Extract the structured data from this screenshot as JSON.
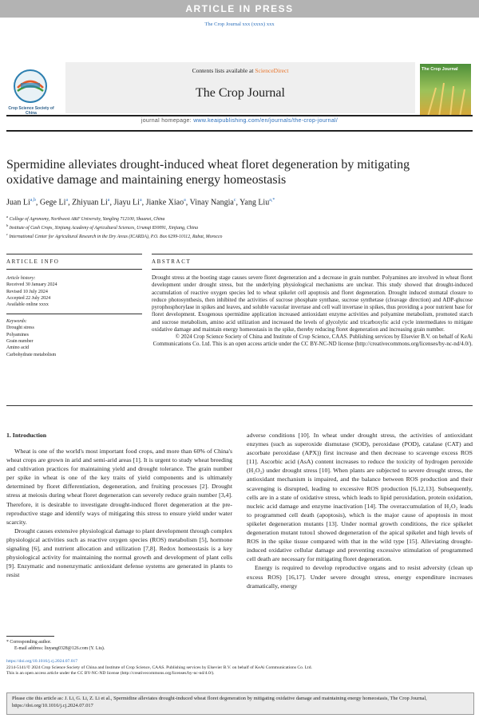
{
  "banner": "ARTICLE IN PRESS",
  "journal_reference": "The Crop Journal xxx (xxxx) xxx",
  "header": {
    "society_logo_text": "Crop Science Society of China",
    "contents_prefix": "Contents lists available at",
    "contents_link": "ScienceDirect",
    "journal_title": "The Crop Journal",
    "cover_title": "The Crop Journal",
    "homepage_label": "journal homepage:",
    "homepage_url": "www.keaipublishing.com/en/journals/the-crop-journal/"
  },
  "article": {
    "title": "Spermidine alleviates drought-induced wheat floret degeneration by mitigating oxidative damage and maintaining energy homeostasis",
    "authors": [
      {
        "name": "Juan Li",
        "sup": "a,b"
      },
      {
        "name": "Gege Li",
        "sup": "a"
      },
      {
        "name": "Zhiyuan Li",
        "sup": "a"
      },
      {
        "name": "Jiayu Li",
        "sup": "a"
      },
      {
        "name": "Jianke Xiao",
        "sup": "a"
      },
      {
        "name": "Vinay Nangia",
        "sup": "c"
      },
      {
        "name": "Yang Liu",
        "sup": "a,*"
      }
    ],
    "affiliations": [
      {
        "sup": "a",
        "text": "College of Agronomy, Northwest A&F University, Yangling 712100, Shaanxi, China"
      },
      {
        "sup": "b",
        "text": "Institute of Cash Crops, Xinjiang Academy of Agricultural Sciences, Urumqi 830091, Xinjiang, China"
      },
      {
        "sup": "c",
        "text": "International Center for Agricultural Research in the Dry Areas (ICARDA), P.O. Box 6299-10112, Rabat, Morocco"
      }
    ],
    "article_info_heading": "ARTICLE INFO",
    "history_label": "Article history:",
    "history": [
      "Received 30 January 2024",
      "Revised 10 July 2024",
      "Accepted 22 July 2024",
      "Available online xxxx"
    ],
    "keywords_label": "Keywords:",
    "keywords": [
      "Drought stress",
      "Polyamines",
      "Grain number",
      "Amino acid",
      "Carbohydrate metabolism"
    ],
    "abstract_heading": "ABSTRACT",
    "abstract": "Drought stress at the booting stage causes severe floret degeneration and a decrease in grain number. Polyamines are involved in wheat floret development under drought stress, but the underlying physiological mechanisms are unclear. This study showed that drought-induced accumulation of reactive oxygen species led to wheat spikelet cell apoptosis and floret degeneration. Drought induced stomatal closure to reduce photosynthesis, then inhibited the activities of sucrose phosphate synthase, sucrose synthetase (cleavage direction) and ADP-glucose pyrophosphorylase in spikes and leaves, and soluble vacuolar invertase and cell wall invertase in spikes, thus providing a poor nutrient base for floret development. Exogenous spermidine application increased antioxidant enzyme activities and polyamine metabolism, promoted starch and sucrose metabolism, amino acid utilization and increased the levels of glycolytic and tricarboxylic acid cycle intermediates to mitigate oxidative damage and maintain energy homeostasis in the spike, thereby reducing floret degeneration and increasing grain number.",
    "abstract_copyright": "© 2024 Crop Science Society of China and Institute of Crop Science, CAAS. Publishing services by Elsevier B.V. on behalf of KeAi Communications Co. Ltd. This is an open access article under the CC BY-NC-ND license (http://creativecommons.org/licenses/by-nc-nd/4.0/).",
    "introduction": {
      "heading": "1. Introduction",
      "left_column": [
        "Wheat is one of the world's most important food crops, and more than 60% of China's wheat crops are grown in arid and semi-arid areas [1]. It is urgent to study wheat breeding and cultivation practices for maintaining yield and drought tolerance. The grain number per spike in wheat is one of the key traits of yield components and is ultimately determined by floret differentiation, degeneration, and fruiting processes [2]. Drought stress at meiosis during wheat floret degeneration can severely reduce grain number [3,4]. Therefore, it is desirable to investigate drought-induced floret degeneration at the pre-reproductive stage and identify ways of mitigating this stress to ensure yield under water scarcity.",
        "Drought causes extensive physiological damage to plant development through complex physiological activities such as reactive oxygen species (ROS) metabolism [5], hormone signaling [6], and nutrient allocation and utilization [7,8]. Redox homeostasis is a key physiological activity for maintaining the normal growth and development of plant cells [9]. Enzymatic and nonenzymatic antioxidant defense systems are generated in plants to resist"
      ],
      "right_column": [
        "adverse conditions [10]. In wheat under drought stress, the activities of antioxidant enzymes (such as superoxide dismutase (SOD), peroxidase (POD), catalase (CAT) and ascorbate peroxidase (APX)) first increase and then decrease to scavenge excess ROS [11]. Ascorbic acid (AsA) content increases to reduce the toxicity of hydrogen peroxide (H₂O₂) under drought stress [10]. When plants are subjected to severe drought stress, the antioxidant mechanism is impaired, and the balance between ROS production and their scavenging is disrupted, leading to excessive ROS production [6,12,13]. Subsequently, cells are in a state of oxidative stress, which leads to lipid peroxidation, protein oxidation, nucleic acid damage and enzyme inactivation [14]. The overaccumulation of H₂O₂ leads to programmed cell death (apoptosis), which is the major cause of apoptosis in most spikelet degeneration mutants [13]. Under normal growth conditions, the rice spikelet degeneration mutant tutou1 showed degeneration of the apical spikelet and high levels of ROS in the spike tissue compared with that in the wild type [15]. Alleviating drought-induced oxidative cellular damage and preventing excessive stimulation of programmed cell death are necessary for mitigating floret degeneration.",
        "Energy is required to develop reproductive organs and to resist adversity (clean up excess ROS) [16,17]. Under severe drought stress, energy expenditure increases dramatically, energy"
      ]
    },
    "footnotes": [
      "* Corresponding author.",
      "E-mail address: liuyang0328@126.com (Y. Liu)."
    ]
  },
  "footer": {
    "doi": "https://doi.org/10.1016/j.cj.2024.07.017",
    "issn_line": "2214-5141/© 2024 Crop Science Society of China and Institute of Crop Science, CAAS. Publishing services by Elsevier B.V. on behalf of KeAi Communications Co. Ltd.",
    "license_line": "This is an open access article under the CC BY-NC-ND license (http://creativecommons.org/licenses/by-nc-nd/4.0/).",
    "citation": "Please cite this article as: J. Li, G. Li, Z. Li et al., Spermidine alleviates drought-induced wheat floret degeneration by mitigating oxidative damage and maintaining energy homeostasis, The Crop Journal, https://doi.org/10.1016/j.cj.2024.07.017"
  }
}
